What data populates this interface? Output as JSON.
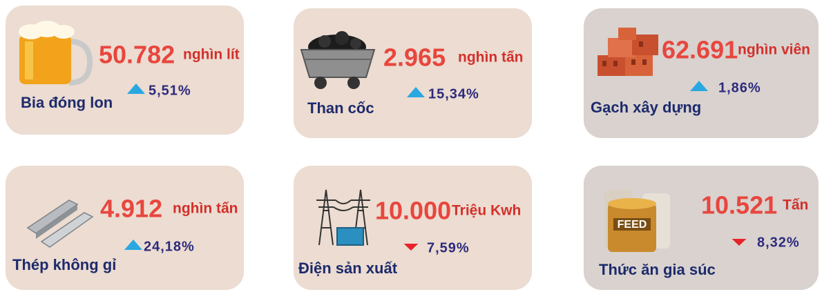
{
  "cards": [
    {
      "name": "Bia đóng lon",
      "value": "50.782",
      "unit": "nghìn lít",
      "change": "5,51%",
      "direction": "up"
    },
    {
      "name": "Than cốc",
      "value": "2.965",
      "unit": "nghìn tấn",
      "change": "15,34%",
      "direction": "up"
    },
    {
      "name": "Gạch xây dựng",
      "value": "62.691",
      "unit": "nghìn viên",
      "change": "1,86%",
      "direction": "up"
    },
    {
      "name": "Thép không gỉ",
      "value": "4.912",
      "unit": "nghìn tấn",
      "change": "24,18%",
      "direction": "up"
    },
    {
      "name": "Điện sản xuất",
      "value": "10.000",
      "unit": "Triệu Kwh",
      "change": "7,59%",
      "direction": "down"
    },
    {
      "name": "Thức ăn gia súc",
      "value": "10.521",
      "unit": "Tấn",
      "change": "8,32%",
      "direction": "down",
      "icon_label": "FEED"
    }
  ]
}
